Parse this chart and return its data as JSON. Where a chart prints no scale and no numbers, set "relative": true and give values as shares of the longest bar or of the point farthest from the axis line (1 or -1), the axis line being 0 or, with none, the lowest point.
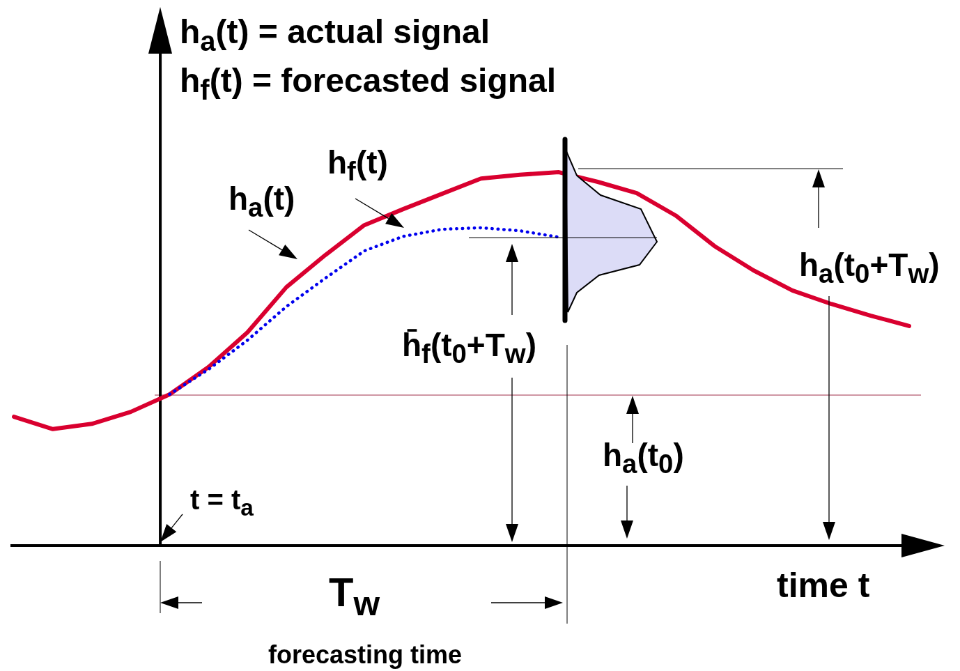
{
  "chart_data": {
    "type": "line",
    "relative": true,
    "xlabel": "time t",
    "tick_labels": false,
    "legend": false,
    "marker": "none",
    "categories": [
      null,
      null,
      null,
      null,
      null,
      null,
      null,
      null,
      null,
      null,
      null,
      null,
      null,
      null,
      null,
      null,
      null,
      null,
      null,
      null,
      null,
      null,
      null,
      null
    ],
    "series": [
      {
        "color": "#d9002f",
        "line_style": "solid",
        "values": [
          0.345,
          0.312,
          0.326,
          0.358,
          0.405,
          0.478,
          0.571,
          0.692,
          0.778,
          0.858,
          0.901,
          0.942,
          0.983,
          0.993,
          1,
          0.974,
          0.944,
          0.884,
          0.802,
          0.737,
          0.683,
          0.647,
          0.616,
          0.588
        ]
      },
      {
        "color": "#0000ee",
        "line_style": "dotted",
        "values": [
          null,
          null,
          null,
          null,
          0.405,
          0.472,
          0.55,
          0.64,
          0.716,
          0.789,
          0.828,
          0.847,
          0.851,
          0.843,
          0.826,
          null,
          null,
          null,
          null,
          null,
          null,
          null,
          null,
          null
        ]
      }
    ],
    "ref_lines": [
      {
        "axis": "y",
        "value": 0.403,
        "color": "#a0304a"
      }
    ],
    "annotations": [
      "h$_{a}$(t) = actual signal",
      "h$_{f}$(t) = forecasted signal",
      "h̄$_{f}$(t$_{0}$+T$_{w}$)",
      "h$_{a}$(t$_{0}$+T$_{w}$)",
      "h$_{a}$(t$_{0}$)",
      "t = t$_{a}$",
      "T$_{w}$",
      "forecasting time",
      "h$_{a}$(t)",
      "h$_{f}$(t)"
    ]
  }
}
